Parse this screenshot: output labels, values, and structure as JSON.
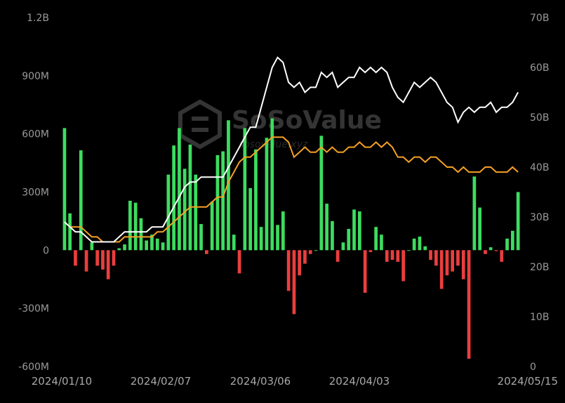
{
  "chart_data": {
    "type": "bar+line",
    "title": "",
    "xlabel": "",
    "ylabel": "",
    "watermark": {
      "brand": "SoSoValue",
      "url": "sosovalue.xyz"
    },
    "x_tick_labels": [
      "2024/01/10",
      "2024/02/07",
      "2024/03/06",
      "2024/04/03",
      "2024/05/15"
    ],
    "left_axis": {
      "min": -600,
      "max": 1200,
      "unit": "M",
      "ticks": [
        "1.2B",
        "900M",
        "600M",
        "300M",
        "0",
        "-300M",
        "-600M"
      ]
    },
    "right_axis": {
      "min": 0,
      "max": 70,
      "unit": "B",
      "ticks": [
        "70B",
        "60B",
        "50B",
        "40B",
        "30B",
        "20B",
        "10B",
        "0"
      ]
    },
    "colors": {
      "positive": "#3ddc5f",
      "negative": "#ea3e3e",
      "line_white": "#ffffff",
      "line_orange": "#f5a025",
      "axis_text": "#9a9a9a",
      "background": "#000000"
    },
    "bars_millions": [
      630,
      190,
      -80,
      515,
      -110,
      40,
      -80,
      -100,
      -150,
      -80,
      10,
      30,
      255,
      245,
      165,
      50,
      80,
      60,
      40,
      390,
      540,
      630,
      420,
      545,
      390,
      135,
      -20,
      250,
      490,
      510,
      670,
      80,
      -120,
      630,
      320,
      520,
      120,
      580,
      680,
      130,
      200,
      -210,
      -330,
      -130,
      -70,
      -20,
      0,
      590,
      240,
      150,
      -60,
      40,
      110,
      210,
      200,
      -220,
      -10,
      120,
      80,
      -60,
      -50,
      -60,
      -160,
      0,
      60,
      70,
      20,
      -50,
      -80,
      -200,
      -130,
      -110,
      -80,
      -150,
      -560,
      380,
      220,
      -20,
      15,
      -5,
      -60,
      60,
      100,
      300
    ],
    "white_line_B": [
      29,
      28,
      27,
      27,
      26,
      25,
      25,
      25,
      25,
      25,
      26,
      27,
      27,
      27,
      27,
      27,
      28,
      28,
      28,
      30,
      32,
      34,
      36,
      37,
      37,
      38,
      38,
      38,
      38,
      38,
      40,
      42,
      44,
      46,
      48,
      48,
      52,
      56,
      60,
      62,
      61,
      57,
      56,
      57,
      55,
      56,
      56,
      59,
      58,
      59,
      56,
      57,
      58,
      58,
      60,
      59,
      60,
      59,
      60,
      59,
      56,
      54,
      53,
      55,
      57,
      56,
      57,
      58,
      57,
      55,
      53,
      52,
      49,
      51,
      52,
      51,
      52,
      52,
      53,
      51,
      52,
      52,
      53,
      55
    ],
    "orange_line_B": [
      29,
      28,
      28,
      28,
      27,
      26,
      26,
      25,
      25,
      25,
      25,
      26,
      26,
      26,
      26,
      26,
      26,
      27,
      27,
      28,
      29,
      30,
      31,
      32,
      32,
      32,
      32,
      33,
      34,
      34,
      37,
      39,
      41,
      42,
      42,
      43,
      44,
      45,
      46,
      46,
      46,
      45,
      42,
      43,
      44,
      43,
      43,
      44,
      43,
      44,
      43,
      43,
      44,
      44,
      45,
      44,
      44,
      45,
      44,
      45,
      44,
      42,
      42,
      41,
      42,
      42,
      41,
      42,
      42,
      41,
      40,
      40,
      39,
      40,
      39,
      39,
      39,
      40,
      40,
      39,
      39,
      39,
      40,
      39
    ]
  }
}
